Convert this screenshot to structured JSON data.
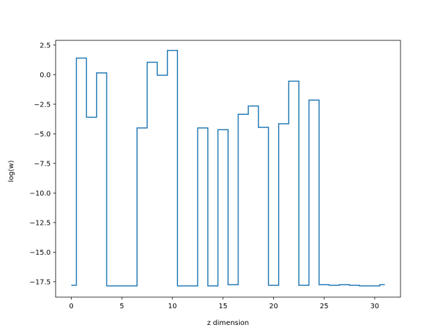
{
  "chart_data": {
    "type": "line",
    "style": "step-mid",
    "title": "",
    "xlabel": "z dimension",
    "ylabel": "log(w)",
    "xlim": [
      -1.55,
      32.55
    ],
    "ylim": [
      -18.8,
      2.9
    ],
    "xticks": [
      0,
      5,
      10,
      15,
      20,
      25,
      30
    ],
    "xtick_labels": [
      "0",
      "5",
      "10",
      "15",
      "20",
      "25",
      "30"
    ],
    "yticks": [
      2.5,
      0.0,
      -2.5,
      -5.0,
      -7.5,
      -10.0,
      -12.5,
      -15.0,
      -17.5
    ],
    "ytick_labels": [
      "2.5",
      "0.0",
      "−2.5",
      "−5.0",
      "−7.5",
      "−10.0",
      "−12.5",
      "−15.0",
      "−17.5"
    ],
    "grid": false,
    "legend": "none",
    "series": [
      {
        "color": "#1f77b4",
        "x": [
          0,
          1,
          2,
          3,
          4,
          5,
          6,
          7,
          8,
          9,
          10,
          11,
          12,
          13,
          14,
          15,
          16,
          17,
          18,
          19,
          20,
          21,
          22,
          23,
          24,
          25,
          26,
          27,
          28,
          29,
          30,
          31
        ],
        "y": [
          -17.8,
          1.4,
          -3.6,
          0.15,
          -17.85,
          -17.85,
          -17.85,
          -4.5,
          1.05,
          -0.05,
          2.05,
          -17.85,
          -17.85,
          -4.5,
          -17.85,
          -4.65,
          -17.75,
          -3.35,
          -2.65,
          -4.45,
          -17.8,
          -4.15,
          -0.55,
          -17.8,
          -2.15,
          -17.75,
          -17.8,
          -17.75,
          -17.8,
          -17.85,
          -17.85,
          -17.75
        ]
      }
    ]
  }
}
